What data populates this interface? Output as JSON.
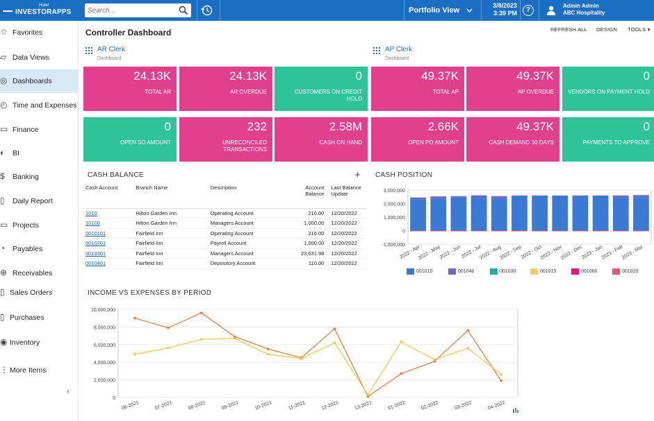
{
  "app": {
    "logo_line1": "Hotel",
    "logo_line2": "INVESTORAPPS",
    "search_placeholder": "Search...",
    "portfolio_label": "Portfolio View",
    "date": "3/8/2023",
    "time": "3:39 PM",
    "help": "?",
    "user_name": "Admin Admin",
    "user_company": "ABC Hospitality",
    "brand_color": "#1a6fc4"
  },
  "sidebar": {
    "items": [
      {
        "label": "Favorites",
        "icon": "star-icon"
      },
      {
        "label": "Data Views",
        "icon": "chart-icon"
      },
      {
        "label": "Dashboards",
        "icon": "dashboard-icon",
        "active": true
      },
      {
        "label": "Time and Expenses",
        "icon": "stopwatch-icon"
      },
      {
        "label": "Finance",
        "icon": "finance-icon"
      },
      {
        "label": "BI",
        "icon": "bi-icon"
      },
      {
        "label": "Banking",
        "icon": "dollar-icon"
      },
      {
        "label": "Daily Report",
        "icon": "report-icon"
      },
      {
        "label": "Projects",
        "icon": "projects-icon"
      },
      {
        "label": "Payables",
        "icon": "payables-icon"
      },
      {
        "label": "Receivables",
        "icon": "plus-circle-icon"
      },
      {
        "label": "Sales Orders",
        "icon": "sales-icon"
      },
      {
        "label": "Purchases",
        "icon": "cart-icon"
      },
      {
        "label": "Inventory",
        "icon": "inventory-icon"
      },
      {
        "label": "More Items",
        "icon": "more-icon"
      }
    ],
    "collapse": "‹"
  },
  "page": {
    "title": "Controller Dashboard",
    "toolbar": {
      "refresh": "REFRESH ALL",
      "design": "DESIGN",
      "tools": "TOOLS"
    }
  },
  "sections": {
    "ar": {
      "title": "AR Clerk",
      "subtitle": "Dashboard"
    },
    "ap": {
      "title": "AP Clerk",
      "subtitle": "Dashboard"
    }
  },
  "tiles": [
    {
      "value": "24.13K",
      "label": "TOTAL AR",
      "color": "pink"
    },
    {
      "value": "24.13K",
      "label": "AR OVERDUE",
      "color": "pink"
    },
    {
      "value": "0",
      "label": "CUSTOMERS ON CREDIT HOLD",
      "color": "green"
    },
    {
      "value": "49.37K",
      "label": "TOTAL AP",
      "color": "pink"
    },
    {
      "value": "49.37K",
      "label": "AP OVERDUE",
      "color": "pink"
    },
    {
      "value": "0",
      "label": "VENDORS ON PAYMENT HOLD",
      "color": "green"
    },
    {
      "value": "0",
      "label": "OPEN SO AMOUNT",
      "color": "green"
    },
    {
      "value": "232",
      "label": "UNRECONCILED TRANSACTIONS",
      "color": "pink"
    },
    {
      "value": "2.58M",
      "label": "CASH ON HAND",
      "color": "pink"
    },
    {
      "value": "2.66K",
      "label": "OPEN PO AMOUNT",
      "color": "pink"
    },
    {
      "value": "49.37K",
      "label": "CASH DEMAND 30 DAYS",
      "color": "pink"
    },
    {
      "value": "0",
      "label": "PAYMENTS TO APPROVE",
      "color": "green"
    }
  ],
  "cash_balance": {
    "title": "CASH BALANCE",
    "add": "+",
    "headers": [
      "Cash Account",
      "Branch Name",
      "Description",
      "Account Balance",
      "Last Balance Update"
    ],
    "rows": [
      [
        "1010",
        "Hilton Garden Inn",
        "Operating Account",
        "210.00",
        "12/20/2022"
      ],
      [
        "10100",
        "Hilton Garden Inn",
        "Managers Account",
        "1,000.00",
        "12/20/2022"
      ],
      [
        "0010101",
        "Fairfield Inn",
        "Operating Account",
        "210.00",
        "12/20/2022"
      ],
      [
        "0010201",
        "Fairfield Inn",
        "Payroll Account",
        "1,000.00",
        "12/20/2022"
      ],
      [
        "0010301",
        "Fairfield Inn",
        "Managers Account",
        "23,631.98",
        "12/20/2022"
      ],
      [
        "0010401",
        "Fairfield Inn",
        "Depository Account",
        "110.00",
        "12/20/2022"
      ]
    ]
  },
  "chart_data": [
    {
      "type": "bar",
      "title": "CASH POSITION",
      "stacked": true,
      "categories": [
        "2022 - Apr",
        "2022 - May",
        "2022 - Jun",
        "2022 - Jul",
        "2022 - Aug",
        "2022 - Sep",
        "2022 - Oct",
        "2022 - Nov",
        "2022 - Dec",
        "2023 - Jan",
        "2023 - Feb",
        "2023 - Mar"
      ],
      "ylim": [
        -1000000,
        3000000
      ],
      "yticks": [
        "3,000,000",
        "2,000,000",
        "1,000,000",
        "0",
        "-1,000,000"
      ],
      "series": [
        {
          "name": "001010",
          "color": "#3a7ad5",
          "values": [
            2300000,
            2380000,
            2480000,
            2460000,
            2380000,
            2560000,
            2560000,
            2560000,
            2560000,
            2560000,
            2440000,
            2480000
          ]
        },
        {
          "name": "001040",
          "color": "#7465c6",
          "values": [
            150000,
            150000,
            70000,
            150000,
            170000,
            40000,
            40000,
            40000,
            40000,
            40000,
            160000,
            150000
          ]
        },
        {
          "name": "001030",
          "color": "#17b3a1",
          "values": [
            0,
            0,
            0,
            0,
            0,
            0,
            0,
            0,
            0,
            0,
            0,
            0
          ]
        },
        {
          "name": "001015",
          "color": "#f6cc6b",
          "values": [
            0,
            0,
            0,
            0,
            0,
            0,
            0,
            0,
            0,
            0,
            0,
            0
          ]
        },
        {
          "name": "001060",
          "color": "#e2197a",
          "values": [
            0,
            0,
            0,
            0,
            0,
            0,
            0,
            0,
            0,
            0,
            0,
            0
          ]
        },
        {
          "name": "001020",
          "color": "#e4586e",
          "values": [
            -30000,
            -30000,
            -30000,
            -30000,
            -30000,
            -30000,
            -30000,
            -30000,
            -30000,
            -30000,
            -30000,
            -30000
          ]
        }
      ],
      "grid": true,
      "legend": "bottom"
    },
    {
      "type": "line",
      "title": "INCOME VS EXPENSES BY PERIOD",
      "x": [
        "06-2021",
        "07-2021",
        "08-2021",
        "09-2021",
        "10-2021",
        "11-2021",
        "12-2021",
        "13-2021",
        "01-2022",
        "02-2022",
        "03-2022",
        "04-2022"
      ],
      "ylim": [
        0,
        10000000
      ],
      "yticks": [
        "10,000,000",
        "8,000,000",
        "6,000,000",
        "4,000,000",
        "2,000,000",
        "0"
      ],
      "series": [
        {
          "color": "#e8763a",
          "values": [
            9000000,
            7900000,
            9600000,
            6900000,
            5500000,
            4500000,
            7800000,
            100000,
            2700000,
            4100000,
            7600000,
            1900000
          ]
        },
        {
          "color": "#f6c340",
          "values": [
            4900000,
            5600000,
            6600000,
            6700000,
            4900000,
            4400000,
            6200000,
            300000,
            6300000,
            4300000,
            5600000,
            2600000
          ]
        }
      ],
      "grid": true
    }
  ]
}
